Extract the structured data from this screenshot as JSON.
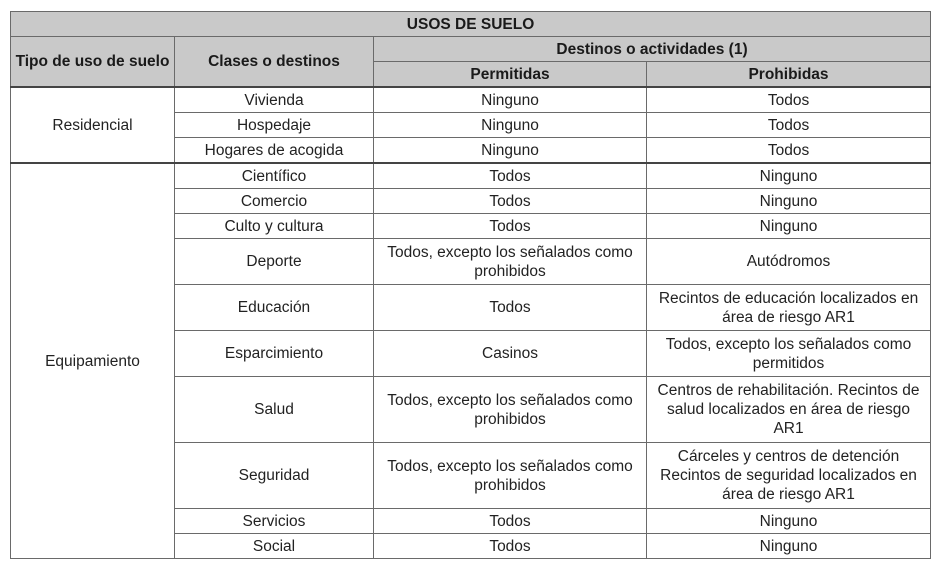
{
  "title": "USOS DE SUELO",
  "headers": {
    "tipo": "Tipo de uso de suelo",
    "clases": "Clases o destinos",
    "destinos": "Destinos o actividades (1)",
    "permitidas": "Permitidas",
    "prohibidas": "Prohibidas"
  },
  "groups": [
    {
      "tipo": "Residencial",
      "rows": [
        {
          "clase": "Vivienda",
          "permitidas": "Ninguno",
          "prohibidas": "Todos"
        },
        {
          "clase": "Hospedaje",
          "permitidas": "Ninguno",
          "prohibidas": "Todos"
        },
        {
          "clase": "Hogares de acogida",
          "permitidas": "Ninguno",
          "prohibidas": "Todos"
        }
      ]
    },
    {
      "tipo": "Equipamiento",
      "rows": [
        {
          "clase": "Científico",
          "permitidas": "Todos",
          "prohibidas": "Ninguno"
        },
        {
          "clase": "Comercio",
          "permitidas": "Todos",
          "prohibidas": "Ninguno"
        },
        {
          "clase": "Culto y cultura",
          "permitidas": "Todos",
          "prohibidas": "Ninguno"
        },
        {
          "clase": "Deporte",
          "permitidas": "Todos, excepto los señalados como prohibidos",
          "prohibidas": "Autódromos"
        },
        {
          "clase": "Educación",
          "permitidas": "Todos",
          "prohibidas": "Recintos de educación localizados en área de riesgo AR1"
        },
        {
          "clase": "Esparcimiento",
          "permitidas": "Casinos",
          "prohibidas": "Todos, excepto los señalados como permitidos"
        },
        {
          "clase": "Salud",
          "permitidas": "Todos, excepto los señalados como prohibidos",
          "prohibidas": "Centros de rehabilitación. Recintos de salud localizados en área de riesgo AR1"
        },
        {
          "clase": "Seguridad",
          "permitidas": "Todos, excepto los señalados como prohibidos",
          "prohibidas": "Cárceles y centros de detención Recintos de seguridad localizados en área de riesgo AR1"
        },
        {
          "clase": "Servicios",
          "permitidas": "Todos",
          "prohibidas": "Ninguno"
        },
        {
          "clase": "Social",
          "permitidas": "Todos",
          "prohibidas": "Ninguno"
        }
      ]
    }
  ]
}
